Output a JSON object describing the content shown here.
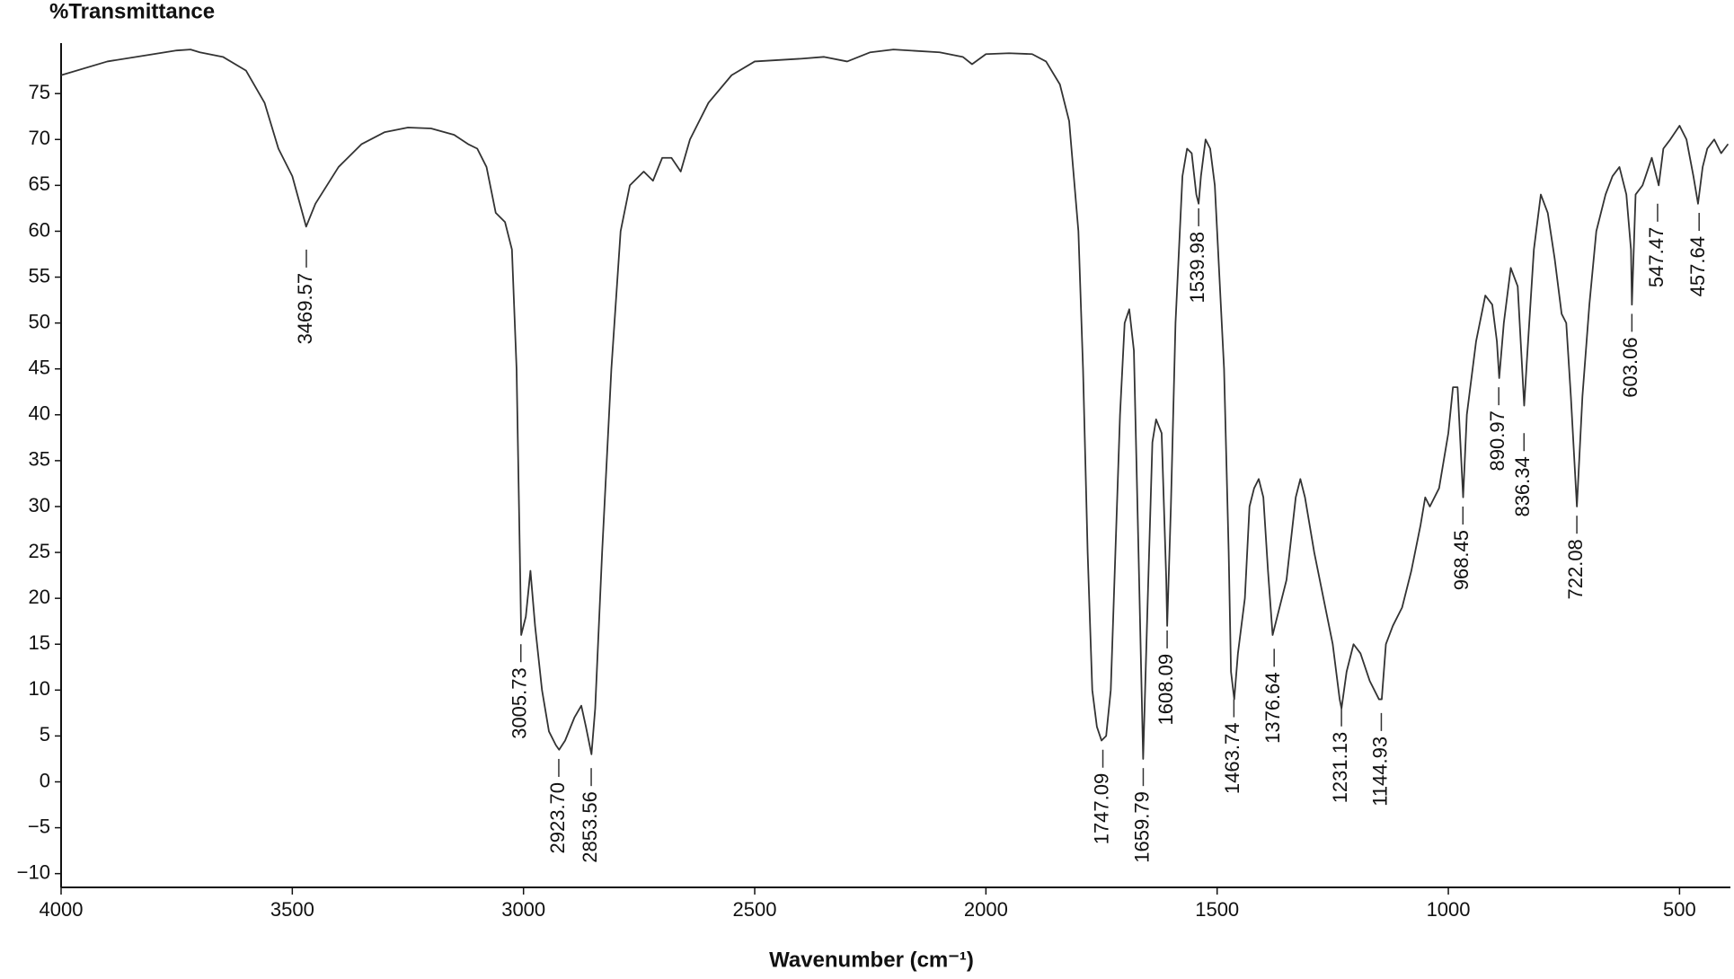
{
  "chart_data": {
    "type": "line",
    "y_label": "%Transmittance",
    "x_label": "Wavenumber (cm⁻¹)",
    "color": "#333333",
    "xlim": [
      4000,
      390
    ],
    "ylim": [
      -11.5,
      80.5
    ],
    "xticks": [
      4000,
      3500,
      3000,
      2500,
      2000,
      1500,
      1000,
      500
    ],
    "yticks": [
      {
        "value": -10,
        "label": "−10"
      },
      {
        "value": -5,
        "label": "−5"
      },
      0,
      5,
      10,
      15,
      20,
      25,
      30,
      35,
      40,
      45,
      50,
      55,
      60,
      65,
      70,
      75
    ],
    "grid": false,
    "x": [
      4000,
      3900,
      3800,
      3750,
      3720,
      3700,
      3650,
      3600,
      3560,
      3530,
      3500,
      3470,
      3450,
      3400,
      3350,
      3300,
      3250,
      3200,
      3150,
      3120,
      3100,
      3080,
      3060,
      3040,
      3025,
      3015,
      3008,
      3005,
      2995,
      2985,
      2975,
      2960,
      2945,
      2930,
      2923,
      2910,
      2890,
      2875,
      2865,
      2853,
      2845,
      2830,
      2810,
      2790,
      2770,
      2740,
      2720,
      2700,
      2680,
      2660,
      2640,
      2600,
      2550,
      2500,
      2400,
      2350,
      2300,
      2250,
      2200,
      2100,
      2050,
      2030,
      2000,
      1950,
      1900,
      1870,
      1840,
      1820,
      1800,
      1790,
      1780,
      1770,
      1760,
      1750,
      1740,
      1730,
      1720,
      1710,
      1700,
      1690,
      1680,
      1670,
      1660,
      1650,
      1640,
      1632,
      1620,
      1610,
      1608,
      1600,
      1590,
      1575,
      1565,
      1555,
      1545,
      1540,
      1535,
      1525,
      1515,
      1505,
      1495,
      1485,
      1475,
      1470,
      1463,
      1455,
      1440,
      1430,
      1420,
      1410,
      1400,
      1390,
      1380,
      1370,
      1350,
      1330,
      1320,
      1310,
      1290,
      1270,
      1250,
      1235,
      1231,
      1220,
      1205,
      1190,
      1170,
      1150,
      1144,
      1135,
      1120,
      1100,
      1080,
      1060,
      1050,
      1040,
      1020,
      1000,
      990,
      980,
      968,
      960,
      940,
      920,
      905,
      895,
      890,
      880,
      865,
      850,
      836,
      830,
      815,
      800,
      785,
      770,
      755,
      745,
      735,
      722,
      710,
      695,
      680,
      660,
      645,
      630,
      615,
      605,
      603,
      595,
      580,
      560,
      550,
      545,
      535,
      520,
      500,
      485,
      470,
      460,
      450,
      440,
      425,
      410,
      395
    ],
    "values": [
      77,
      78.5,
      79.3,
      79.7,
      79.8,
      79.5,
      79,
      77.5,
      74,
      69,
      66,
      60.5,
      63,
      67,
      69.5,
      70.8,
      71.3,
      71.2,
      70.5,
      69.5,
      69,
      67,
      62,
      61,
      58,
      45,
      25,
      16,
      18,
      23,
      17,
      10,
      5.5,
      4,
      3.5,
      4.5,
      7,
      8.3,
      6,
      3,
      8,
      25,
      45,
      60,
      65,
      66.5,
      65.5,
      68,
      68,
      66.5,
      70,
      74,
      77,
      78.5,
      78.8,
      79,
      78.5,
      79.5,
      79.8,
      79.5,
      79,
      78.2,
      79.3,
      79.4,
      79.3,
      78.5,
      76,
      72,
      60,
      45,
      25,
      10,
      6,
      4.5,
      5,
      10,
      25,
      40,
      50,
      51.5,
      47,
      25,
      2.5,
      20,
      37,
      39.5,
      38,
      22,
      17,
      30,
      50,
      66,
      69,
      68.5,
      64,
      63,
      66,
      70,
      69,
      65,
      55,
      45,
      25,
      12,
      9,
      14,
      20,
      30,
      32,
      33,
      31,
      23,
      16,
      18,
      22,
      31,
      33,
      31,
      25,
      20,
      15,
      9,
      8,
      12,
      15,
      14,
      11,
      9,
      9,
      15,
      17,
      19,
      23,
      28,
      31,
      30,
      32,
      38,
      43,
      43,
      31,
      40,
      48,
      53,
      52,
      48,
      44,
      50,
      56,
      54,
      41,
      46,
      58,
      64,
      62,
      57,
      51,
      50,
      42,
      30,
      42,
      52,
      60,
      64,
      66,
      67,
      64,
      58,
      52,
      64,
      65,
      68,
      66,
      65,
      69,
      70,
      71.5,
      70,
      66,
      63,
      67,
      69,
      70,
      68.5,
      69.5
    ],
    "peaks": [
      {
        "x": 3469.57,
        "y": 58,
        "label": "3469.57"
      },
      {
        "x": 3005.73,
        "y": 15,
        "label": "3005.73"
      },
      {
        "x": 2923.7,
        "y": 2.5,
        "label": "2923.70"
      },
      {
        "x": 2853.56,
        "y": 1.5,
        "label": "2853.56"
      },
      {
        "x": 1747.09,
        "y": 3.5,
        "label": "1747.09"
      },
      {
        "x": 1659.79,
        "y": 1.5,
        "label": "1659.79"
      },
      {
        "x": 1608.09,
        "y": 16.5,
        "label": "1608.09"
      },
      {
        "x": 1539.98,
        "y": 62.5,
        "label": "1539.98"
      },
      {
        "x": 1463.74,
        "y": 9,
        "label": "1463.74"
      },
      {
        "x": 1376.64,
        "y": 14.5,
        "label": "1376.64"
      },
      {
        "x": 1231.13,
        "y": 8,
        "label": "1231.13"
      },
      {
        "x": 1144.93,
        "y": 7.5,
        "label": "1144.93"
      },
      {
        "x": 968.45,
        "y": 30,
        "label": "968.45"
      },
      {
        "x": 890.97,
        "y": 43,
        "label": "890.97"
      },
      {
        "x": 836.34,
        "y": 38,
        "label": "836.34"
      },
      {
        "x": 722.08,
        "y": 29,
        "label": "722.08"
      },
      {
        "x": 603.06,
        "y": 51,
        "label": "603.06"
      },
      {
        "x": 547.47,
        "y": 63,
        "label": "547.47"
      },
      {
        "x": 457.64,
        "y": 62,
        "label": "457.64"
      }
    ]
  }
}
